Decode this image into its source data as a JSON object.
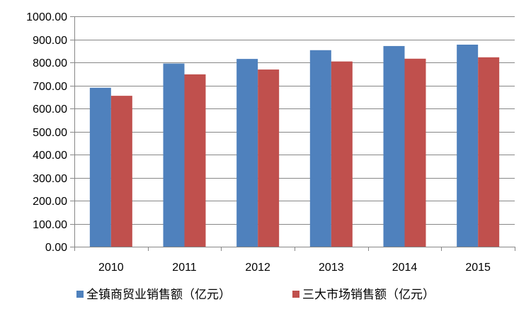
{
  "chart_data": {
    "type": "bar",
    "title": "",
    "xlabel": "",
    "ylabel": "",
    "categories": [
      "2010",
      "2011",
      "2012",
      "2013",
      "2014",
      "2015"
    ],
    "series": [
      {
        "name": "全镇商贸业销售额（亿元）",
        "color": "#4F81BD",
        "values": [
          690,
          795,
          815,
          853,
          871,
          877
        ]
      },
      {
        "name": "三大市场销售额（亿元）",
        "color": "#C0504D",
        "values": [
          655,
          748,
          769,
          804,
          816,
          822
        ]
      }
    ],
    "ylim": [
      0,
      1000
    ],
    "yticks": [
      "0.00",
      "100.00",
      "200.00",
      "300.00",
      "400.00",
      "500.00",
      "600.00",
      "700.00",
      "800.00",
      "900.00",
      "1000.00"
    ],
    "grid": true,
    "legend_position": "bottom"
  }
}
